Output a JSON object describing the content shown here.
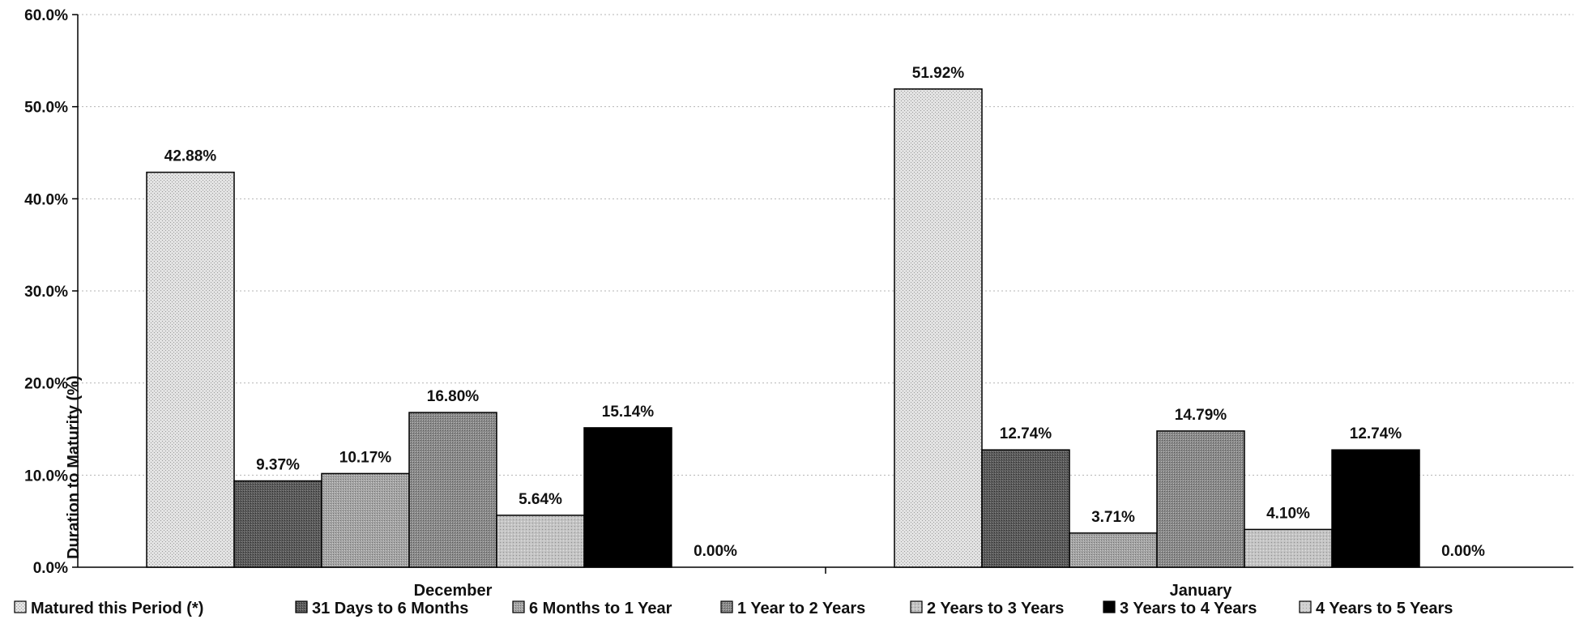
{
  "chart_data": {
    "type": "bar",
    "ylabel": "Duration to Maturity (%)",
    "xlabel": "",
    "ylim": [
      0,
      60
    ],
    "y_ticks": [
      "0.0%",
      "10.0%",
      "20.0%",
      "30.0%",
      "40.0%",
      "50.0%",
      "60.0%"
    ],
    "grid": true,
    "legend_position": "bottom",
    "categories": [
      "December",
      "January"
    ],
    "series": [
      {
        "name": "Matured this Period (*)",
        "values": [
          42.88,
          51.92
        ],
        "labels": [
          "42.88%",
          "51.92%"
        ],
        "color": "#d6d6d6"
      },
      {
        "name": "31 Days to 6 Months",
        "values": [
          9.37,
          12.74
        ],
        "labels": [
          "9.37%",
          "12.74%"
        ],
        "color": "#6b6b6b"
      },
      {
        "name": "6 Months to 1 Year",
        "values": [
          10.17,
          3.71
        ],
        "labels": [
          "10.17%",
          "3.71%"
        ],
        "color": "#a9a9a9"
      },
      {
        "name": "1 Year to 2 Years",
        "values": [
          16.8,
          14.79
        ],
        "labels": [
          "16.80%",
          "14.79%"
        ],
        "color": "#8f8f8f"
      },
      {
        "name": "2 Years to 3 Years",
        "values": [
          5.64,
          4.1
        ],
        "labels": [
          "5.64%",
          "4.10%"
        ],
        "color": "#bdbdbd"
      },
      {
        "name": "3 Years to 4 Years",
        "values": [
          15.14,
          12.74
        ],
        "labels": [
          "15.14%",
          "12.74%"
        ],
        "color": "#000000"
      },
      {
        "name": "4 Years to 5 Years",
        "values": [
          0.0,
          0.0
        ],
        "labels": [
          "0.00%",
          "0.00%"
        ],
        "color": "#c8c8c8"
      }
    ]
  }
}
